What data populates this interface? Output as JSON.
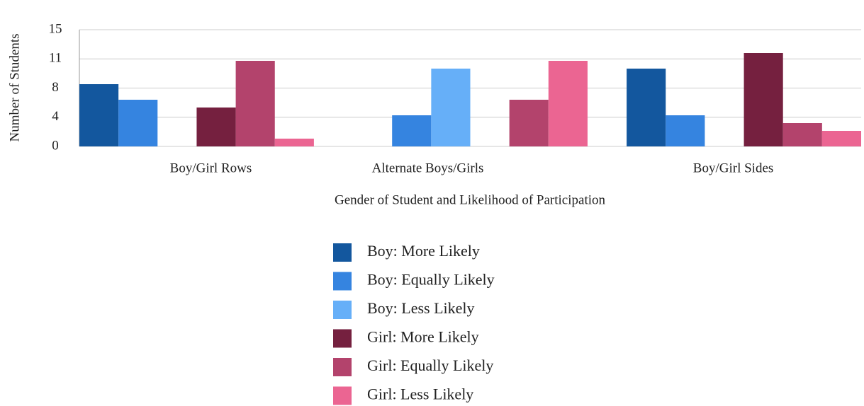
{
  "chart_data": {
    "type": "bar",
    "x_label": "Gender of Student and Likelihood of Participation",
    "y_label": "Number of Students",
    "categories": [
      "Boy/Girl Rows",
      "Alternate Boys/Girls",
      "Boy/Girl Sides"
    ],
    "series": [
      {
        "name": "Boy: More Likely",
        "color": "#13579e",
        "values": [
          8,
          0,
          10
        ]
      },
      {
        "name": "Boy: Equally Likely",
        "color": "#3584e0",
        "values": [
          6,
          4,
          4
        ]
      },
      {
        "name": "Boy: Less Likely",
        "color": "#66aff8",
        "values": [
          0,
          10,
          0
        ]
      },
      {
        "name": "Girl: More Likely",
        "color": "#75203f",
        "values": [
          5,
          0,
          12
        ]
      },
      {
        "name": "Girl: Equally Likely",
        "color": "#b3436c",
        "values": [
          11,
          6,
          3
        ]
      },
      {
        "name": "Girl: Less Likely",
        "color": "#eb6592",
        "values": [
          1,
          11,
          2
        ]
      }
    ],
    "ylim": [
      0,
      15
    ],
    "yticks": [
      0,
      {
        "value": 3.75,
        "label": "4"
      },
      {
        "value": 7.5,
        "label": "8"
      },
      {
        "value": 11.25,
        "label": "11"
      },
      15
    ],
    "grid": true,
    "legend": "bottom"
  }
}
